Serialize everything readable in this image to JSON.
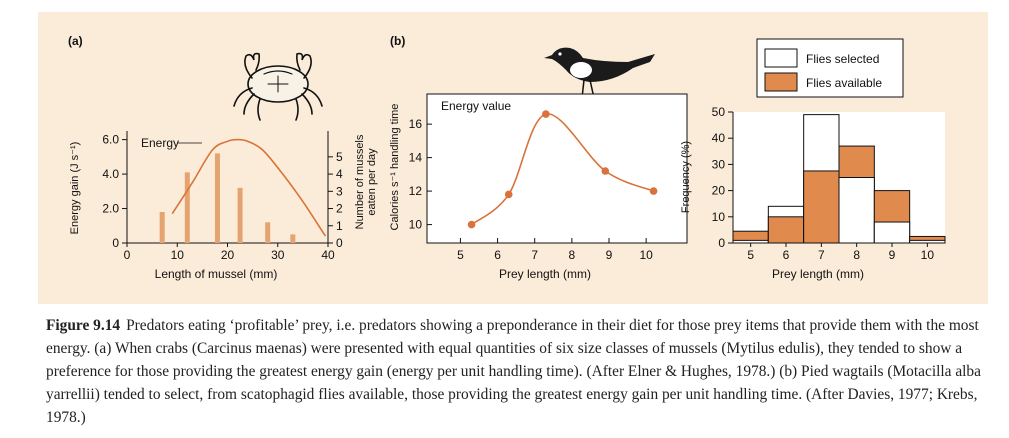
{
  "colors": {
    "panel_bg": "#fbecd9",
    "accent": "#e08a4e",
    "bar": "#e5a36f",
    "line": "#d9733b",
    "ink": "#111111"
  },
  "caption": {
    "label": "Figure 9.14",
    "text": "Predators eating ‘profitable’ prey, i.e. predators showing a preponderance in their diet for those prey items that provide them with the most energy. (a) When crabs (Carcinus maenas) were presented with equal quantities of six size classes of mussels (Mytilus edulis), they tended to show a preference for those providing the greatest energy gain (energy per unit handling time). (After Elner & Hughes, 1978.) (b) Pied wagtails (Motacilla alba yarrellii) tended to select, from scatophagid flies available, those providing the greatest energy gain per unit handling time. (After Davies, 1977; Krebs, 1978.)"
  },
  "chart_data": [
    {
      "panel": "(a)",
      "type": "bar",
      "xlabel": "Length of mussel (mm)",
      "ylabel": "Energy gain (J s⁻¹)",
      "y2label_line1": "Number of mussels",
      "y2label_line2": "eaten per day",
      "xlim": [
        0,
        40
      ],
      "ylim": [
        0,
        6.5
      ],
      "y2lim": [
        0,
        6.5
      ],
      "xticks": [
        "0",
        "10",
        "20",
        "30",
        "40"
      ],
      "yticks": [
        "0",
        "2.0",
        "4.0",
        "6.0"
      ],
      "y2ticks": [
        "0",
        "1",
        "2",
        "3",
        "4",
        "5"
      ],
      "bars": {
        "x": [
          7,
          12,
          18,
          22.5,
          28,
          33
        ],
        "values": [
          1.8,
          4.1,
          5.2,
          3.2,
          1.2,
          0.5
        ]
      },
      "energy_curve": {
        "label": "Energy",
        "x": [
          9,
          13,
          17,
          20,
          22,
          24,
          27,
          31,
          35,
          39.5
        ],
        "y": [
          1.7,
          3.5,
          5.4,
          5.9,
          6.0,
          5.9,
          5.4,
          4.0,
          2.4,
          0.4
        ]
      }
    },
    {
      "panel": "(b)",
      "type": "line",
      "title": "Energy value",
      "xlabel": "Prey length (mm)",
      "ylabel": "Calories s⁻¹ handling time",
      "xlim": [
        4.1,
        11.1
      ],
      "ylim": [
        8.9,
        17.8
      ],
      "xticks": [
        "5",
        "6",
        "7",
        "8",
        "9",
        "10"
      ],
      "yticks": [
        "10",
        "12",
        "14",
        "16"
      ],
      "x": [
        5.3,
        6.3,
        7.3,
        8.9,
        10.2
      ],
      "y": [
        10.0,
        11.8,
        16.6,
        13.2,
        12.0
      ]
    },
    {
      "panel": "(b) histogram",
      "type": "bar",
      "xlabel": "Prey length (mm)",
      "ylabel": "Frequency (%)",
      "xlim": [
        4.5,
        10.5
      ],
      "ylim": [
        0,
        50
      ],
      "xticks": [
        "5",
        "6",
        "7",
        "8",
        "9",
        "10"
      ],
      "yticks": [
        "0",
        "10",
        "20",
        "30",
        "40",
        "50"
      ],
      "categories": [
        "5",
        "6",
        "7",
        "8",
        "9",
        "10"
      ],
      "series": [
        {
          "name": "Flies selected",
          "values": [
            1,
            14,
            49,
            25,
            8,
            1
          ]
        },
        {
          "name": "Flies available",
          "values": [
            4.5,
            10,
            27.5,
            37,
            20,
            2.5
          ]
        }
      ],
      "legend": [
        "Flies selected",
        "Flies available"
      ]
    }
  ]
}
